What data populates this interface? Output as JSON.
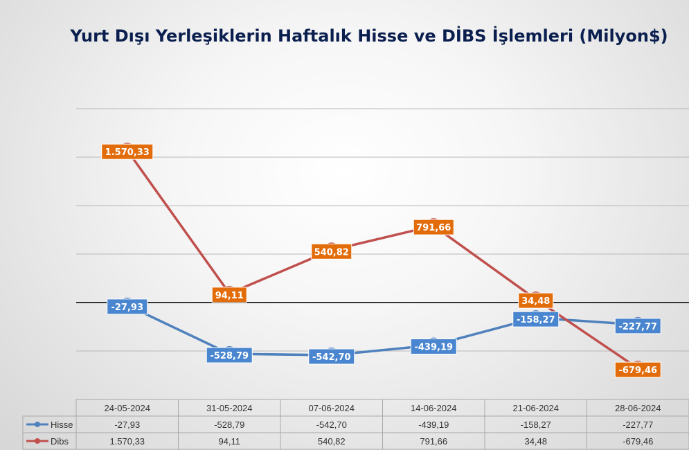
{
  "chart_data": {
    "type": "line",
    "title": "Yurt Dışı Yerleşiklerin Haftalık Hisse ve DİBS İşlemleri (Milyon$)",
    "categories": [
      "24-05-2024",
      "31-05-2024",
      "07-06-2024",
      "14-06-2024",
      "21-06-2024",
      "28-06-2024"
    ],
    "series": [
      {
        "name": "Hisse",
        "values": [
          -27.93,
          -528.79,
          -542.7,
          -439.19,
          -158.27,
          -227.77
        ],
        "labels": [
          "-27,93",
          "-528,79",
          "-542,70",
          "-439,19",
          "-158,27",
          "-227,77"
        ],
        "color": "#4f81bd",
        "label_bg": "#4a86cf"
      },
      {
        "name": "Dibs",
        "values": [
          1570.33,
          94.11,
          540.82,
          791.66,
          34.48,
          -679.46
        ],
        "labels": [
          "1.570,33",
          "94,11",
          "540,82",
          "791,66",
          "34,48",
          "-679,46"
        ],
        "color": "#c0504d",
        "label_bg": "#e36c0a"
      }
    ],
    "ylim": [
      -1000,
      2000
    ],
    "grid": true,
    "legend": "data-table"
  }
}
